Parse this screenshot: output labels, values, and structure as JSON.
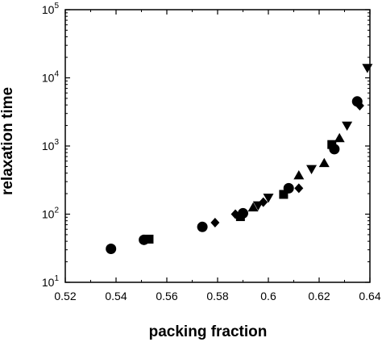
{
  "chart_data": {
    "type": "scatter",
    "title": "",
    "xlabel": "packing fraction",
    "ylabel": "relaxation time",
    "xlim": [
      0.52,
      0.64
    ],
    "ylim": [
      10,
      100000
    ],
    "yscale": "log",
    "grid": false,
    "legend": "none",
    "x_ticks": [
      0.52,
      0.54,
      0.56,
      0.58,
      0.6,
      0.62,
      0.64
    ],
    "x_tick_labels": [
      "0.52",
      "0.54",
      "0.56",
      "0.58",
      "0.6",
      "0.62",
      "0.64"
    ],
    "y_ticks": [
      10,
      100,
      1000,
      10000,
      100000
    ],
    "y_tick_labels": [
      {
        "base": "10",
        "exp": "1"
      },
      {
        "base": "10",
        "exp": "2"
      },
      {
        "base": "10",
        "exp": "3"
      },
      {
        "base": "10",
        "exp": "4"
      },
      {
        "base": "10",
        "exp": "5"
      }
    ],
    "marker_color": "#000000",
    "series": [
      {
        "marker": "circle",
        "points": [
          [
            0.538,
            31
          ],
          [
            0.551,
            42
          ],
          [
            0.574,
            65
          ],
          [
            0.59,
            103
          ],
          [
            0.608,
            240
          ],
          [
            0.626,
            900
          ],
          [
            0.635,
            4500
          ]
        ]
      },
      {
        "marker": "square",
        "points": [
          [
            0.553,
            43
          ],
          [
            0.589,
            92
          ],
          [
            0.606,
            195
          ],
          [
            0.625,
            1050
          ]
        ]
      },
      {
        "marker": "diamond",
        "points": [
          [
            0.579,
            75
          ],
          [
            0.587,
            100
          ],
          [
            0.598,
            150
          ],
          [
            0.612,
            240
          ],
          [
            0.636,
            3900
          ]
        ]
      },
      {
        "marker": "triangle-up",
        "points": [
          [
            0.594,
            125
          ],
          [
            0.612,
            370
          ],
          [
            0.622,
            560
          ],
          [
            0.628,
            1300
          ]
        ]
      },
      {
        "marker": "triangle-down",
        "points": [
          [
            0.596,
            135
          ],
          [
            0.6,
            175
          ],
          [
            0.617,
            460
          ],
          [
            0.631,
            2000
          ],
          [
            0.639,
            14000
          ]
        ]
      }
    ]
  }
}
